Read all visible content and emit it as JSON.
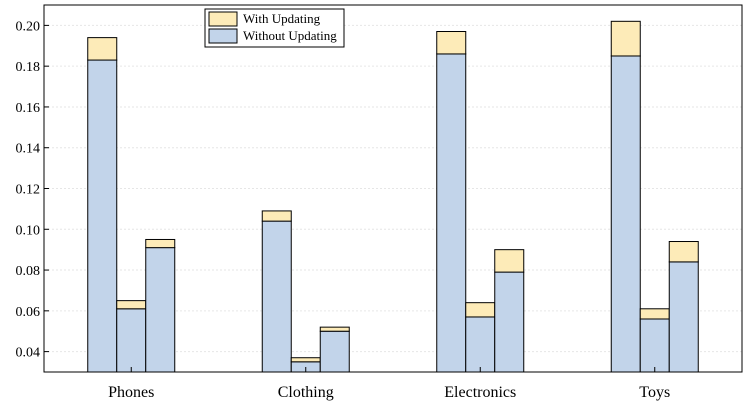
{
  "chart_data": {
    "type": "bar",
    "stacked": true,
    "categories": [
      "Phones",
      "Clothing",
      "Electronics",
      "Toys"
    ],
    "bars_per_category": 3,
    "series": [
      {
        "name": "Without Updating",
        "color": "#c2d4ea",
        "values": [
          [
            0.183,
            0.061,
            0.091
          ],
          [
            0.104,
            0.035,
            0.05
          ],
          [
            0.186,
            0.057,
            0.079
          ],
          [
            0.185,
            0.056,
            0.084
          ]
        ]
      },
      {
        "name": "With Updating",
        "color": "#fdebb8",
        "totals": [
          [
            0.194,
            0.065,
            0.095
          ],
          [
            0.109,
            0.037,
            0.052
          ],
          [
            0.197,
            0.064,
            0.09
          ],
          [
            0.202,
            0.061,
            0.094
          ]
        ]
      }
    ],
    "ylim": [
      0.03,
      0.21
    ],
    "yticks": [
      "0.04",
      "0.06",
      "0.08",
      "0.10",
      "0.12",
      "0.14",
      "0.16",
      "0.18",
      "0.20"
    ],
    "grid": true,
    "legend_position": "top-center",
    "title": "",
    "xlabel": "",
    "ylabel": ""
  }
}
